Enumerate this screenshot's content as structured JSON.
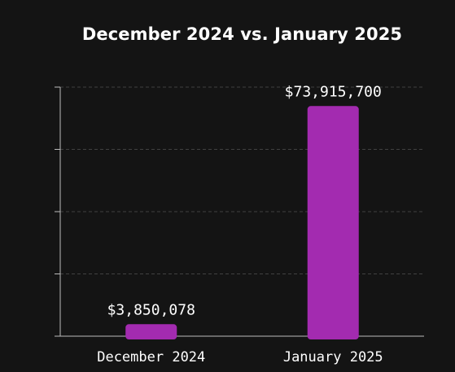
{
  "chart_data": {
    "type": "bar",
    "title": "December 2024 vs. January 2025",
    "categories": [
      "December 2024",
      "January 2025"
    ],
    "values": [
      3850078,
      73915700
    ],
    "value_labels": [
      "$3,850,078",
      "$73,915,700"
    ],
    "ylim": [
      0,
      80000000
    ],
    "y_tick_values": [
      0,
      20000000,
      40000000,
      60000000,
      80000000
    ],
    "grid": true,
    "xlabel": "",
    "ylabel": "",
    "bar_color": "#a32bb0",
    "background_color": "#141414",
    "grid_color": "#555555",
    "axis_color": "#bbbbbb",
    "text_color": "#ffffff"
  }
}
